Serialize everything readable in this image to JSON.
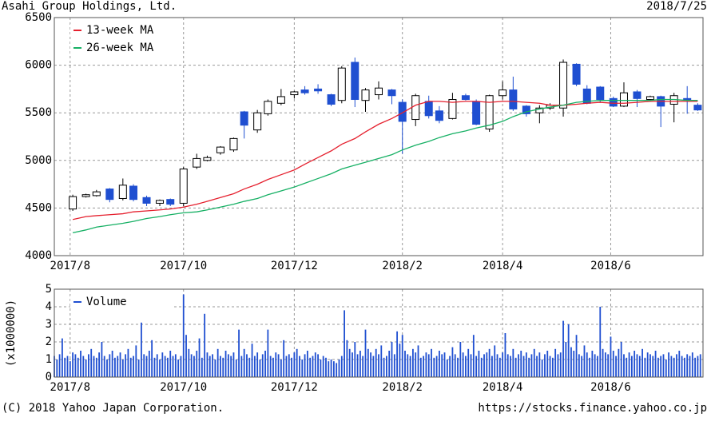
{
  "header": {
    "title": "Asahi Group Holdings, Ltd.",
    "date": "2018/7/25"
  },
  "chart_data": [
    {
      "type": "candlestick",
      "grid": true,
      "xlim": [
        0,
        246
      ],
      "xticks": [
        {
          "value": 6,
          "label": "2017/8"
        },
        {
          "value": 49,
          "label": "2017/10"
        },
        {
          "value": 91,
          "label": "2017/12"
        },
        {
          "value": 132,
          "label": "2018/2"
        },
        {
          "value": 170,
          "label": "2018/4"
        },
        {
          "value": 211,
          "label": "2018/6"
        }
      ],
      "ylim": [
        4000,
        6500
      ],
      "yticks": [
        4000,
        4500,
        5000,
        5500,
        6000,
        6500
      ],
      "up_color": "#ffffff",
      "down_color": "#1f4fd1",
      "legend": "upper left",
      "x": [
        7,
        12,
        16,
        21,
        26,
        30,
        35,
        40,
        44,
        49,
        54,
        58,
        63,
        68,
        72,
        77,
        81,
        86,
        91,
        95,
        100,
        105,
        109,
        114,
        118,
        123,
        128,
        132,
        137,
        142,
        146,
        151,
        156,
        160,
        165,
        170,
        174,
        179,
        184,
        188,
        193,
        198,
        202,
        207,
        212,
        216,
        221,
        226,
        230,
        235,
        240,
        244
      ],
      "open": [
        4490,
        4620,
        4630,
        4700,
        4600,
        4730,
        4610,
        4550,
        4590,
        4550,
        4930,
        5000,
        5080,
        5110,
        5510,
        5320,
        5490,
        5600,
        5690,
        5740,
        5750,
        5690,
        5630,
        6030,
        5630,
        5690,
        5740,
        5610,
        5430,
        5620,
        5520,
        5440,
        5680,
        5620,
        5330,
        5680,
        5740,
        5570,
        5500,
        5550,
        5550,
        6010,
        5750,
        5770,
        5650,
        5570,
        5720,
        5640,
        5670,
        5590,
        5650,
        5580
      ],
      "high": [
        4640,
        4650,
        4690,
        4710,
        4810,
        4750,
        4630,
        4590,
        4600,
        4930,
        5070,
        5050,
        5150,
        5240,
        5520,
        5530,
        5640,
        5750,
        5730,
        5780,
        5800,
        5700,
        5990,
        6080,
        5760,
        5830,
        5750,
        5640,
        5700,
        5680,
        5570,
        5710,
        5700,
        5640,
        5690,
        5830,
        5880,
        5580,
        5580,
        5600,
        6060,
        6020,
        5790,
        5780,
        5670,
        5820,
        5740,
        5680,
        5680,
        5710,
        5780,
        5600
      ],
      "low": [
        4470,
        4610,
        4620,
        4560,
        4580,
        4570,
        4520,
        4520,
        4520,
        4520,
        4910,
        4990,
        5060,
        5090,
        5230,
        5290,
        5470,
        5580,
        5650,
        5690,
        5700,
        5570,
        5600,
        5560,
        5510,
        5640,
        5590,
        5070,
        5360,
        5440,
        5390,
        5430,
        5630,
        5370,
        5300,
        5640,
        5520,
        5460,
        5390,
        5530,
        5460,
        5780,
        5590,
        5610,
        5560,
        5560,
        5560,
        5620,
        5350,
        5400,
        5490,
        5520
      ],
      "close": [
        4620,
        4640,
        4670,
        4590,
        4740,
        4590,
        4550,
        4580,
        4540,
        4910,
        5020,
        5030,
        5140,
        5230,
        5370,
        5500,
        5620,
        5670,
        5720,
        5710,
        5730,
        5590,
        5970,
        5640,
        5740,
        5760,
        5680,
        5410,
        5680,
        5470,
        5420,
        5640,
        5640,
        5380,
        5680,
        5740,
        5540,
        5490,
        5550,
        5580,
        6030,
        5800,
        5600,
        5640,
        5570,
        5710,
        5650,
        5670,
        5570,
        5680,
        5640,
        5530
      ],
      "series": [
        {
          "name": "13-week MA",
          "color": "#e5202e",
          "values": [
            4380,
            4410,
            4420,
            4430,
            4440,
            4460,
            4470,
            4480,
            4490,
            4510,
            4540,
            4570,
            4610,
            4650,
            4700,
            4750,
            4800,
            4850,
            4900,
            4960,
            5030,
            5100,
            5170,
            5230,
            5300,
            5380,
            5440,
            5500,
            5580,
            5620,
            5620,
            5610,
            5620,
            5620,
            5610,
            5620,
            5620,
            5610,
            5600,
            5580,
            5580,
            5590,
            5600,
            5610,
            5600,
            5600,
            5610,
            5620,
            5620,
            5620,
            5620,
            5620
          ]
        },
        {
          "name": "26-week MA",
          "color": "#16b064",
          "values": [
            4240,
            4270,
            4300,
            4320,
            4340,
            4360,
            4390,
            4410,
            4430,
            4450,
            4460,
            4480,
            4510,
            4540,
            4570,
            4600,
            4640,
            4680,
            4720,
            4760,
            4810,
            4860,
            4910,
            4950,
            4980,
            5020,
            5060,
            5110,
            5160,
            5200,
            5240,
            5280,
            5310,
            5340,
            5370,
            5410,
            5460,
            5510,
            5540,
            5560,
            5580,
            5610,
            5620,
            5630,
            5630,
            5630,
            5630,
            5630,
            5640,
            5640,
            5630,
            5630
          ]
        }
      ]
    },
    {
      "type": "bar",
      "grid": true,
      "ylabel": "(x1000000)",
      "legend": "upper left",
      "xlim": [
        0,
        246
      ],
      "xticks": [
        {
          "value": 6,
          "label": "2017/8"
        },
        {
          "value": 49,
          "label": "2017/10"
        },
        {
          "value": 91,
          "label": "2017/12"
        },
        {
          "value": 132,
          "label": "2018/2"
        },
        {
          "value": 170,
          "label": "2018/4"
        },
        {
          "value": 211,
          "label": "2018/6"
        }
      ],
      "ylim": [
        0,
        5
      ],
      "yticks": [
        0,
        1,
        2,
        3,
        4,
        5
      ],
      "series": [
        {
          "name": "Volume",
          "color": "#1f4fd1",
          "x": [
            0,
            1,
            2,
            3,
            4,
            5,
            6,
            7,
            8,
            9,
            10,
            11,
            12,
            13,
            14,
            15,
            16,
            17,
            18,
            19,
            20,
            21,
            22,
            23,
            24,
            25,
            26,
            27,
            28,
            29,
            30,
            31,
            32,
            33,
            34,
            35,
            36,
            37,
            38,
            39,
            40,
            41,
            42,
            43,
            44,
            45,
            46,
            47,
            48,
            49,
            50,
            51,
            52,
            53,
            54,
            55,
            56,
            57,
            58,
            59,
            60,
            61,
            62,
            63,
            64,
            65,
            66,
            67,
            68,
            69,
            70,
            71,
            72,
            73,
            74,
            75,
            76,
            77,
            78,
            79,
            80,
            81,
            82,
            83,
            84,
            85,
            86,
            87,
            88,
            89,
            90,
            91,
            92,
            93,
            94,
            95,
            96,
            97,
            98,
            99,
            100,
            101,
            102,
            103,
            104,
            105,
            106,
            107,
            108,
            109,
            110,
            111,
            112,
            113,
            114,
            115,
            116,
            117,
            118,
            119,
            120,
            121,
            122,
            123,
            124,
            125,
            126,
            127,
            128,
            129,
            130,
            131,
            132,
            133,
            134,
            135,
            136,
            137,
            138,
            139,
            140,
            141,
            142,
            143,
            144,
            145,
            146,
            147,
            148,
            149,
            150,
            151,
            152,
            153,
            154,
            155,
            156,
            157,
            158,
            159,
            160,
            161,
            162,
            163,
            164,
            165,
            166,
            167,
            168,
            169,
            170,
            171,
            172,
            173,
            174,
            175,
            176,
            177,
            178,
            179,
            180,
            181,
            182,
            183,
            184,
            185,
            186,
            187,
            188,
            189,
            190,
            191,
            192,
            193,
            194,
            195,
            196,
            197,
            198,
            199,
            200,
            201,
            202,
            203,
            204,
            205,
            206,
            207,
            208,
            209,
            210,
            211,
            212,
            213,
            214,
            215,
            216,
            217,
            218,
            219,
            220,
            221,
            222,
            223,
            224,
            225,
            226,
            227,
            228,
            229,
            230,
            231,
            232,
            233,
            234,
            235,
            236,
            237,
            238,
            239,
            240,
            241,
            242,
            243,
            244,
            245
          ],
          "values": [
            1.2,
            1.0,
            1.3,
            2.2,
            1.1,
            1.2,
            0.9,
            1.4,
            1.3,
            1.1,
            1.5,
            1.2,
            1.0,
            1.3,
            1.6,
            1.2,
            1.1,
            1.4,
            2.0,
            1.2,
            1.0,
            1.3,
            1.5,
            1.1,
            1.2,
            1.4,
            1.0,
            1.3,
            1.6,
            1.1,
            1.2,
            1.8,
            1.0,
            3.1,
            1.3,
            1.2,
            1.5,
            2.1,
            1.1,
            1.3,
            1.0,
            1.4,
            1.2,
            1.1,
            1.5,
            1.2,
            1.3,
            1.0,
            1.2,
            4.7,
            2.4,
            1.6,
            1.3,
            1.2,
            1.5,
            2.2,
            1.1,
            3.6,
            1.4,
            1.2,
            1.3,
            1.0,
            1.6,
            1.2,
            1.1,
            1.5,
            1.3,
            1.2,
            1.4,
            1.0,
            2.7,
            1.2,
            1.6,
            1.3,
            1.1,
            1.9,
            1.2,
            1.4,
            1.0,
            1.3,
            1.5,
            2.7,
            1.2,
            1.1,
            1.4,
            1.3,
            1.0,
            2.1,
            1.2,
            1.3,
            1.1,
            1.4,
            1.6,
            1.2,
            1.0,
            1.3,
            1.5,
            1.1,
            1.2,
            1.4,
            1.3,
            1.0,
            1.2,
            1.1,
            0.9,
            1.0,
            0.9,
            0.8,
            1.0,
            1.2,
            3.8,
            2.1,
            1.6,
            1.4,
            2.0,
            1.3,
            1.5,
            1.2,
            2.7,
            1.6,
            1.4,
            1.2,
            1.6,
            1.3,
            1.8,
            1.1,
            1.2,
            1.5,
            2.0,
            1.3,
            2.6,
            1.9,
            2.4,
            1.5,
            1.3,
            1.2,
            1.6,
            1.4,
            1.8,
            1.1,
            1.2,
            1.4,
            1.3,
            1.6,
            1.1,
            1.2,
            1.5,
            1.3,
            1.4,
            1.0,
            1.2,
            1.7,
            1.3,
            1.1,
            2.0,
            1.4,
            1.2,
            1.6,
            1.3,
            2.4,
            1.2,
            1.5,
            1.1,
            1.3,
            1.4,
            1.6,
            1.2,
            1.8,
            1.3,
            1.1,
            1.4,
            2.5,
            1.3,
            1.2,
            1.6,
            1.1,
            1.3,
            1.5,
            1.2,
            1.4,
            1.1,
            1.3,
            1.6,
            1.2,
            1.4,
            1.0,
            1.3,
            1.5,
            1.2,
            1.1,
            1.6,
            1.3,
            1.4,
            3.2,
            2.0,
            3.0,
            1.7,
            1.5,
            2.4,
            1.3,
            1.2,
            1.8,
            1.4,
            1.1,
            1.5,
            1.3,
            1.2,
            4.0,
            1.6,
            1.4,
            1.3,
            2.3,
            1.5,
            1.2,
            1.6,
            2.0,
            1.3,
            1.1,
            1.4,
            1.2,
            1.5,
            1.3,
            1.2,
            1.6,
            1.1,
            1.4,
            1.3,
            1.2,
            1.5,
            1.1,
            1.2,
            1.3,
            1.0,
            1.4,
            1.2,
            1.1,
            1.3,
            1.5,
            1.2,
            1.1,
            1.3,
            1.2,
            1.4,
            1.1,
            1.2,
            1.3
          ]
        }
      ]
    }
  ],
  "footer": {
    "copyright": "(C) 2018 Yahoo Japan Corporation.",
    "url": "https://stocks.finance.yahoo.co.jp"
  }
}
